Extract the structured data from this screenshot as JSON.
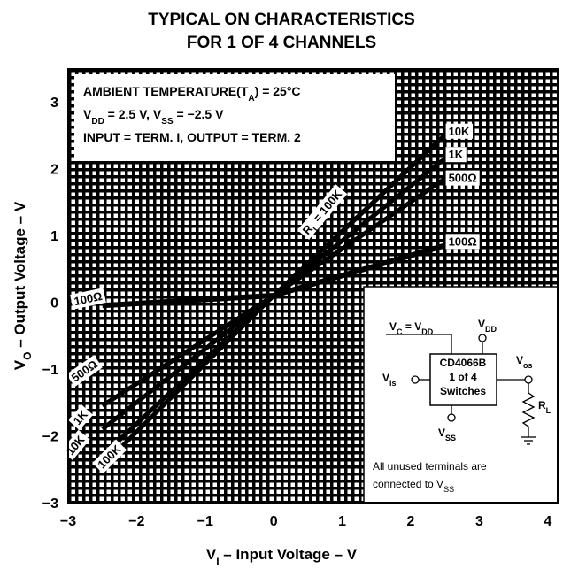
{
  "title_line1": "TYPICAL ON CHARACTERISTICS",
  "title_line2": "FOR 1 OF 4 CHANNELS",
  "conditions": {
    "line1_pre": "AMBIENT TEMPERATURE(T",
    "line1_sub": "A",
    "line1_post": ") = 25°C",
    "line2_a": "V",
    "line2_a_sub": "DD",
    "line2_b": " = 2.5 V, V",
    "line2_b_sub": "SS",
    "line2_c": " = −2.5 V",
    "line3": "INPUT = TERM. I, OUTPUT = TERM. 2"
  },
  "inset": {
    "vc_label": "V",
    "vc_sub": "C",
    "vc_mid": " = V",
    "vc_sub2": "DD",
    "vdd": "V",
    "vdd_sub": "DD",
    "vis": "V",
    "vis_sub": "is",
    "vos": "V",
    "vos_sub": "os",
    "vss": "V",
    "vss_sub": "SS",
    "rl": "R",
    "rl_sub": "L",
    "chip_line1": "CD4066B",
    "chip_line2": "1 of 4",
    "chip_line3": "Switches",
    "note_line1": "All  unused  terminals  are",
    "note_line2": "connected to V",
    "note_sub": "SS"
  },
  "chart_data": {
    "type": "line",
    "title": "TYPICAL ON CHARACTERISTICS FOR 1 OF 4 CHANNELS",
    "xlabel": "V",
    "xlabel_sub": "I",
    "xlabel_rest": " – Input Voltage – V",
    "ylabel": "V",
    "ylabel_sub": "O",
    "ylabel_rest": " – Output Voltage – V",
    "xlim": [
      -3,
      4.3
    ],
    "ylim": [
      -3,
      3.5
    ],
    "xticks": [
      "−3",
      "−2",
      "−1",
      "0",
      "1",
      "2",
      "3",
      "4"
    ],
    "yticks": [
      "−3",
      "−2",
      "−1",
      "0",
      "1",
      "2",
      "3"
    ],
    "grid": true,
    "series": [
      {
        "name": "R",
        "name_sub": "L",
        "name_rest": " = 100K",
        "x": [
          -2.5,
          0,
          2.5
        ],
        "y": [
          -2.45,
          0.1,
          2.5
        ]
      },
      {
        "name": "10K",
        "x": [
          -2.5,
          0,
          2.5
        ],
        "y": [
          -2.3,
          0.1,
          2.5
        ]
      },
      {
        "name": "1K",
        "x": [
          -2.5,
          0,
          2.5
        ],
        "y": [
          -1.9,
          0.1,
          2.15
        ]
      },
      {
        "name": "500Ω",
        "x": [
          -2.5,
          0,
          2.5
        ],
        "y": [
          -1.55,
          0.1,
          1.85
        ]
      },
      {
        "name": "100Ω",
        "x": [
          -2.5,
          0,
          2.5
        ],
        "y": [
          -0.05,
          0.1,
          0.85
        ]
      }
    ],
    "right_labels": [
      "10K",
      "1K",
      "500Ω",
      "100Ω"
    ],
    "left_labels": [
      "100Ω",
      "500Ω",
      "1K",
      "10K",
      "100K"
    ]
  }
}
